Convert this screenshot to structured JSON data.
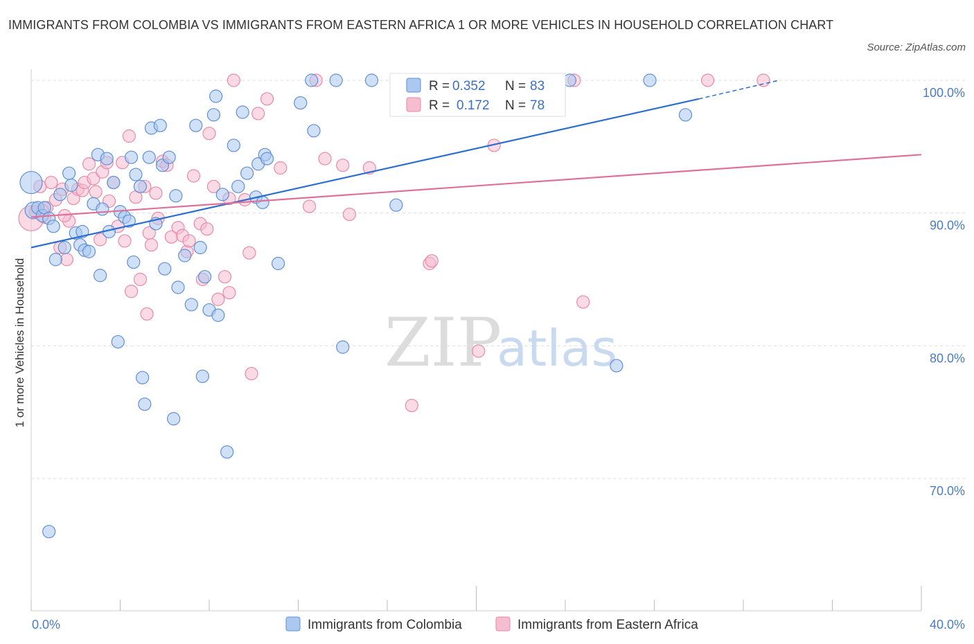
{
  "title": "IMMIGRANTS FROM COLOMBIA VS IMMIGRANTS FROM EASTERN AFRICA 1 OR MORE VEHICLES IN HOUSEHOLD CORRELATION CHART",
  "source": "Source: ZipAtlas.com",
  "watermark": {
    "zip": "ZIP",
    "atlas": "atlas"
  },
  "colors": {
    "colombia_fill": "#aac8f0",
    "colombia_stroke": "#5f8fd6",
    "colombia_line": "#2a6fd0",
    "africa_fill": "#f6bcd0",
    "africa_stroke": "#e889a8",
    "africa_line": "#e07098",
    "grid": "#dddddd",
    "axis_text": "#4a7bc8"
  },
  "legend": {
    "r_label": "R =",
    "n_label": "N =",
    "colombia": {
      "r": "0.352",
      "n": "83"
    },
    "africa": {
      "r": "0.172",
      "n": "78"
    }
  },
  "chart_data": {
    "type": "scatter",
    "xlabel": "",
    "ylabel": "1 or more Vehicles in Household",
    "x_tick_labels": [
      "0.0%",
      "40.0%"
    ],
    "y_tick_labels": [
      "100.0%",
      "90.0%",
      "80.0%",
      "70.0%"
    ],
    "y_ticks": [
      100,
      90,
      80,
      70
    ],
    "xlim": [
      0,
      40
    ],
    "ylim": [
      60,
      100
    ],
    "grid": true,
    "series": [
      {
        "name": "Immigrants from Colombia",
        "trend": {
          "x": [
            0,
            30
          ],
          "y": [
            87.4,
            98.6
          ],
          "dashed_to": [
            33.6,
            100.0
          ]
        },
        "points": [
          [
            0.0,
            92.3,
            16
          ],
          [
            0.1,
            90.2,
            12
          ],
          [
            0.3,
            90.4,
            9
          ],
          [
            0.5,
            89.8,
            9
          ],
          [
            0.6,
            90.4,
            9
          ],
          [
            0.8,
            89.6,
            9
          ],
          [
            1.0,
            89.0,
            9
          ],
          [
            1.1,
            86.5,
            9
          ],
          [
            1.3,
            91.4,
            9
          ],
          [
            1.5,
            87.4,
            9
          ],
          [
            1.7,
            93.0,
            9
          ],
          [
            1.8,
            92.1,
            9
          ],
          [
            2.0,
            88.5,
            9
          ],
          [
            2.2,
            87.6,
            9
          ],
          [
            2.3,
            88.6,
            9
          ],
          [
            2.4,
            87.2,
            9
          ],
          [
            2.6,
            87.1,
            9
          ],
          [
            2.8,
            90.7,
            9
          ],
          [
            3.0,
            94.4,
            9
          ],
          [
            3.1,
            85.3,
            9
          ],
          [
            3.2,
            90.3,
            9
          ],
          [
            3.4,
            94.1,
            9
          ],
          [
            3.5,
            88.6,
            9
          ],
          [
            3.7,
            92.3,
            9
          ],
          [
            3.9,
            80.3,
            9
          ],
          [
            4.0,
            90.1,
            9
          ],
          [
            4.2,
            89.7,
            9
          ],
          [
            4.4,
            89.4,
            9
          ],
          [
            4.5,
            94.2,
            9
          ],
          [
            4.6,
            86.3,
            9
          ],
          [
            4.7,
            92.9,
            9
          ],
          [
            4.9,
            92.0,
            9
          ],
          [
            5.0,
            77.6,
            9
          ],
          [
            5.1,
            75.6,
            9
          ],
          [
            5.3,
            94.2,
            9
          ],
          [
            5.4,
            96.4,
            9
          ],
          [
            5.6,
            89.2,
            9
          ],
          [
            5.8,
            96.6,
            9
          ],
          [
            5.9,
            93.6,
            9
          ],
          [
            6.0,
            85.8,
            9
          ],
          [
            6.2,
            94.2,
            9
          ],
          [
            6.4,
            74.5,
            9
          ],
          [
            6.5,
            91.3,
            9
          ],
          [
            6.6,
            84.4,
            9
          ],
          [
            6.9,
            86.8,
            9
          ],
          [
            7.2,
            83.1,
            9
          ],
          [
            7.4,
            96.6,
            9
          ],
          [
            7.6,
            87.4,
            9
          ],
          [
            7.7,
            77.7,
            9
          ],
          [
            7.8,
            85.2,
            9
          ],
          [
            8.0,
            82.7,
            9
          ],
          [
            8.2,
            97.4,
            9
          ],
          [
            8.3,
            98.8,
            9
          ],
          [
            8.4,
            82.3,
            9
          ],
          [
            8.6,
            91.4,
            9
          ],
          [
            8.8,
            72.0,
            9
          ],
          [
            9.1,
            95.1,
            9
          ],
          [
            9.3,
            92.0,
            9
          ],
          [
            9.5,
            97.6,
            9
          ],
          [
            9.7,
            93.0,
            9
          ],
          [
            10.1,
            91.2,
            9
          ],
          [
            10.2,
            93.7,
            9
          ],
          [
            10.4,
            90.8,
            9
          ],
          [
            10.5,
            94.4,
            9
          ],
          [
            10.6,
            94.1,
            9
          ],
          [
            11.1,
            86.2,
            9
          ],
          [
            12.1,
            98.3,
            9
          ],
          [
            12.6,
            100.0,
            9
          ],
          [
            12.7,
            96.2,
            9
          ],
          [
            13.7,
            100.0,
            9
          ],
          [
            14.0,
            79.9,
            9
          ],
          [
            15.3,
            100.0,
            9
          ],
          [
            16.4,
            90.6,
            9
          ],
          [
            17.6,
            100.0,
            9
          ],
          [
            22.2,
            100.0,
            9
          ],
          [
            24.2,
            100.0,
            9
          ],
          [
            26.3,
            78.5,
            9
          ],
          [
            27.8,
            100.0,
            9
          ],
          [
            29.4,
            97.4,
            9
          ],
          [
            0.8,
            66.0,
            9
          ]
        ]
      },
      {
        "name": "Immigrants from Eastern Africa",
        "trend": {
          "x": [
            0,
            40
          ],
          "y": [
            89.7,
            94.4
          ]
        },
        "points": [
          [
            0.0,
            89.6,
            18
          ],
          [
            0.2,
            90.1,
            9
          ],
          [
            0.4,
            92.0,
            9
          ],
          [
            0.6,
            89.7,
            9
          ],
          [
            0.7,
            90.4,
            9
          ],
          [
            0.9,
            92.3,
            9
          ],
          [
            1.1,
            91.0,
            9
          ],
          [
            1.3,
            87.4,
            9
          ],
          [
            1.4,
            91.8,
            9
          ],
          [
            1.6,
            86.5,
            9
          ],
          [
            1.7,
            89.4,
            9
          ],
          [
            1.9,
            91.1,
            9
          ],
          [
            2.1,
            91.8,
            9
          ],
          [
            2.3,
            91.7,
            9
          ],
          [
            2.4,
            92.3,
            9
          ],
          [
            2.6,
            93.7,
            9
          ],
          [
            2.8,
            92.6,
            9
          ],
          [
            2.9,
            91.6,
            9
          ],
          [
            3.1,
            88.0,
            9
          ],
          [
            3.2,
            93.1,
            9
          ],
          [
            3.4,
            93.8,
            9
          ],
          [
            3.5,
            90.9,
            9
          ],
          [
            3.7,
            92.3,
            9
          ],
          [
            3.9,
            89.0,
            9
          ],
          [
            4.1,
            93.8,
            9
          ],
          [
            4.2,
            87.9,
            9
          ],
          [
            4.4,
            95.8,
            9
          ],
          [
            4.5,
            84.1,
            9
          ],
          [
            4.7,
            91.2,
            9
          ],
          [
            4.9,
            85.0,
            9
          ],
          [
            5.1,
            92.0,
            9
          ],
          [
            5.2,
            82.4,
            9
          ],
          [
            5.3,
            88.5,
            9
          ],
          [
            5.4,
            87.6,
            9
          ],
          [
            5.6,
            91.5,
            9
          ],
          [
            5.7,
            89.6,
            9
          ],
          [
            5.9,
            93.9,
            9
          ],
          [
            6.1,
            93.6,
            9
          ],
          [
            6.3,
            88.2,
            9
          ],
          [
            6.6,
            88.9,
            9
          ],
          [
            6.8,
            88.3,
            9
          ],
          [
            7.0,
            87.1,
            9
          ],
          [
            7.1,
            87.9,
            9
          ],
          [
            7.3,
            92.8,
            9
          ],
          [
            7.6,
            89.2,
            9
          ],
          [
            7.7,
            85.0,
            9
          ],
          [
            7.9,
            88.8,
            9
          ],
          [
            8.0,
            96.0,
            9
          ],
          [
            8.2,
            92.0,
            9
          ],
          [
            8.4,
            83.5,
            9
          ],
          [
            8.7,
            85.2,
            9
          ],
          [
            8.9,
            91.1,
            9
          ],
          [
            8.9,
            84.0,
            9
          ],
          [
            9.1,
            100.0,
            9
          ],
          [
            9.6,
            91.0,
            9
          ],
          [
            9.8,
            87.0,
            9
          ],
          [
            9.9,
            77.9,
            9
          ],
          [
            10.2,
            97.5,
            9
          ],
          [
            10.6,
            98.6,
            9
          ],
          [
            11.2,
            93.4,
            9
          ],
          [
            12.5,
            90.5,
            9
          ],
          [
            12.8,
            100.0,
            9
          ],
          [
            13.2,
            94.1,
            9
          ],
          [
            14.0,
            93.6,
            9
          ],
          [
            14.3,
            89.9,
            9
          ],
          [
            15.2,
            93.4,
            9
          ],
          [
            17.1,
            75.5,
            9
          ],
          [
            17.9,
            86.2,
            9
          ],
          [
            18.0,
            86.4,
            9
          ],
          [
            20.1,
            79.6,
            9
          ],
          [
            20.8,
            95.1,
            9
          ],
          [
            22.4,
            100.0,
            9
          ],
          [
            24.4,
            100.0,
            9
          ],
          [
            24.8,
            83.3,
            9
          ],
          [
            30.4,
            100.0,
            9
          ],
          [
            32.9,
            100.0,
            9
          ],
          [
            0.5,
            90.2,
            9
          ],
          [
            1.5,
            89.8,
            9
          ]
        ]
      }
    ]
  }
}
